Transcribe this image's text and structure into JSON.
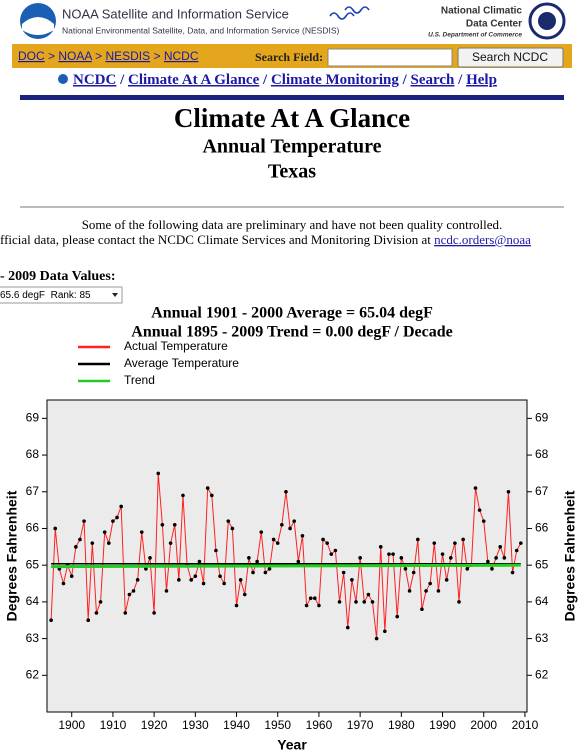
{
  "header": {
    "agency": "NOAA Satellite and Information Service",
    "agency_sub": "National Environmental Satellite, Data, and Information Service (NESDIS)",
    "center_line1": "National Climatic",
    "center_line2": "Data Center",
    "department": "U.S. Department of Commerce"
  },
  "breadcrumb": {
    "items": [
      "DOC",
      "NOAA",
      "NESDIS",
      "NCDC"
    ],
    "separator": ">"
  },
  "search": {
    "label": "Search Field:",
    "button": "Search NCDC"
  },
  "nav": {
    "items": [
      "NCDC",
      "Climate At A Glance",
      "Climate Monitoring",
      "Search",
      "Help"
    ],
    "separator": "/"
  },
  "page": {
    "title": "Climate At A Glance",
    "subtitle": "Annual Temperature",
    "region": "Texas"
  },
  "notice": {
    "line1": "Some of the following data are preliminary and have not been quality controlled.",
    "line2": "fficial data, please contact the NCDC Climate Services and Monitoring Division at",
    "email": "ncdc.orders@noaa"
  },
  "data_values": {
    "heading": "- 2009 Data Values:",
    "selected": "65.6 degF  Rank: 85"
  },
  "chart_data": {
    "type": "line",
    "title": "Annual 1901 - 2000 Average = 65.04 degF",
    "subtitle": "Annual 1895 - 2009 Trend = 0.00 degF / Decade",
    "x_label": "Year",
    "y_label": "Degrees Fahrenheit",
    "y2_label": "Degrees Fahrenheit",
    "x": [
      1895,
      1896,
      1897,
      1898,
      1899,
      1900,
      1901,
      1902,
      1903,
      1904,
      1905,
      1906,
      1907,
      1908,
      1909,
      1910,
      1911,
      1912,
      1913,
      1914,
      1915,
      1916,
      1917,
      1918,
      1919,
      1920,
      1921,
      1922,
      1923,
      1924,
      1925,
      1926,
      1927,
      1928,
      1929,
      1930,
      1931,
      1932,
      1933,
      1934,
      1935,
      1936,
      1937,
      1938,
      1939,
      1940,
      1941,
      1942,
      1943,
      1944,
      1945,
      1946,
      1947,
      1948,
      1949,
      1950,
      1951,
      1952,
      1953,
      1954,
      1955,
      1956,
      1957,
      1958,
      1959,
      1960,
      1961,
      1962,
      1963,
      1964,
      1965,
      1966,
      1967,
      1968,
      1969,
      1970,
      1971,
      1972,
      1973,
      1974,
      1975,
      1976,
      1977,
      1978,
      1979,
      1980,
      1981,
      1982,
      1983,
      1984,
      1985,
      1986,
      1987,
      1988,
      1989,
      1990,
      1991,
      1992,
      1993,
      1994,
      1995,
      1996,
      1997,
      1998,
      1999,
      2000,
      2001,
      2002,
      2003,
      2004,
      2005,
      2006,
      2007,
      2008,
      2009
    ],
    "series": [
      {
        "name": "Actual Temperature",
        "color": "#ff2020",
        "marker_color": "#000000",
        "values": [
          63.5,
          66.0,
          64.9,
          64.5,
          65.0,
          64.7,
          65.5,
          65.7,
          66.2,
          63.5,
          65.6,
          63.7,
          64.0,
          65.9,
          65.6,
          66.2,
          66.3,
          66.6,
          63.7,
          64.2,
          64.3,
          64.6,
          65.9,
          64.9,
          65.2,
          63.7,
          67.5,
          66.1,
          64.3,
          65.6,
          66.1,
          64.6,
          66.9,
          65.0,
          64.6,
          64.7,
          65.1,
          64.5,
          67.1,
          66.9,
          65.4,
          64.7,
          64.5,
          66.2,
          66.0,
          63.9,
          64.6,
          64.2,
          65.2,
          64.8,
          65.1,
          65.9,
          64.8,
          64.9,
          65.7,
          65.6,
          66.1,
          67.0,
          66.0,
          66.2,
          65.1,
          65.8,
          63.9,
          64.1,
          64.1,
          63.9,
          65.7,
          65.6,
          65.3,
          65.4,
          64.0,
          64.8,
          63.3,
          64.6,
          64.0,
          65.2,
          64.0,
          64.2,
          64.0,
          63.0,
          65.5,
          63.2,
          65.3,
          65.3,
          63.6,
          65.2,
          64.9,
          64.3,
          64.8,
          65.7,
          63.8,
          64.3,
          64.5,
          65.6,
          64.3,
          65.3,
          64.6,
          65.2,
          65.6,
          64.0,
          65.7,
          64.9,
          65.0,
          67.1,
          66.5,
          66.2,
          65.1,
          64.9,
          65.2,
          65.5,
          65.2,
          67.0,
          64.8,
          65.4,
          65.6
        ]
      },
      {
        "name": "Average Temperature",
        "color": "#000000",
        "x": [
          1895,
          2009
        ],
        "values": [
          65.04,
          65.04
        ]
      },
      {
        "name": "Trend",
        "color": "#22cc22",
        "x": [
          1895,
          2009
        ],
        "values": [
          64.96,
          65.0
        ]
      }
    ],
    "xlim": [
      1894,
      2010.5
    ],
    "ylim": [
      61.0,
      69.5
    ],
    "y2lim": [
      61.0,
      69.5
    ],
    "xticks": [
      1900,
      1910,
      1920,
      1930,
      1940,
      1950,
      1960,
      1970,
      1980,
      1990,
      2000,
      2010
    ],
    "yticks": [
      62,
      63,
      64,
      65,
      66,
      67,
      68,
      69
    ],
    "y2ticks": [
      62,
      63,
      64,
      65,
      66,
      67,
      68,
      69
    ],
    "plot_background": "#ebebeb"
  }
}
